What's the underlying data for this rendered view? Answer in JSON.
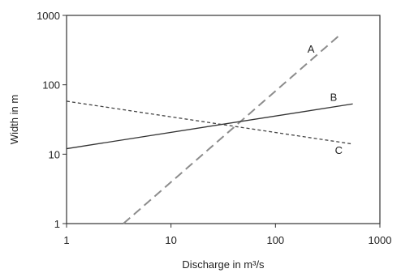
{
  "chart_data": {
    "type": "line",
    "xscale": "log",
    "yscale": "log",
    "xlim": [
      1,
      1000
    ],
    "ylim": [
      1,
      1000
    ],
    "xlabel": "Discharge in m³/s",
    "ylabel": "Width in m",
    "x_ticks": [
      {
        "value": 1,
        "label": "1"
      },
      {
        "value": 10,
        "label": "10"
      },
      {
        "value": 100,
        "label": "100"
      },
      {
        "value": 1000,
        "label": "1000"
      }
    ],
    "y_ticks": [
      {
        "value": 1,
        "label": "1"
      },
      {
        "value": 10,
        "label": "10"
      },
      {
        "value": 100,
        "label": "100"
      },
      {
        "value": 1000,
        "label": "1000"
      }
    ],
    "grid": false,
    "legend": "none",
    "series": [
      {
        "name": "A",
        "style": "dashed",
        "color": "#8c8c8c",
        "points": [
          {
            "x": 3.5,
            "y": 1
          },
          {
            "x": 400,
            "y": 500
          }
        ]
      },
      {
        "name": "B",
        "style": "solid",
        "color": "#333333",
        "points": [
          {
            "x": 1,
            "y": 12
          },
          {
            "x": 550,
            "y": 53
          }
        ]
      },
      {
        "name": "C",
        "style": "dotted",
        "color": "#444444",
        "points": [
          {
            "x": 1,
            "y": 58
          },
          {
            "x": 550,
            "y": 14
          }
        ]
      }
    ]
  }
}
